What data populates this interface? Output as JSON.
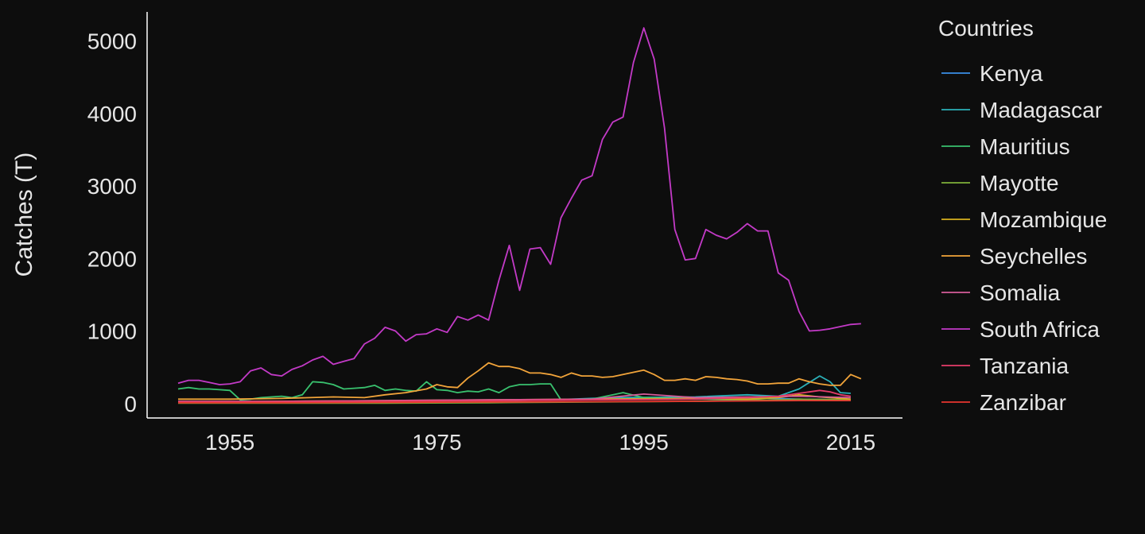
{
  "chart_data": {
    "type": "line",
    "title": "",
    "xlabel": "",
    "ylabel": "Catches (T)",
    "xlim": [
      1947,
      2020
    ],
    "ylim": [
      -200,
      5400
    ],
    "xticks": [
      1955,
      1975,
      1995,
      2015
    ],
    "yticks": [
      0,
      1000,
      2000,
      3000,
      4000,
      5000
    ],
    "grid": false,
    "legend": {
      "title": "Countries",
      "placement": "right"
    },
    "series": [
      {
        "name": "Kenya",
        "color": "#3a8ee8",
        "points": [
          [
            1950,
            20
          ],
          [
            1960,
            25
          ],
          [
            1970,
            30
          ],
          [
            1980,
            40
          ],
          [
            1990,
            60
          ],
          [
            2000,
            70
          ],
          [
            2005,
            80
          ],
          [
            2010,
            60
          ],
          [
            2015,
            50
          ]
        ]
      },
      {
        "name": "Madagascar",
        "color": "#2bb0b8",
        "points": [
          [
            1950,
            10
          ],
          [
            1960,
            15
          ],
          [
            1970,
            20
          ],
          [
            1980,
            30
          ],
          [
            1988,
            60
          ],
          [
            1992,
            80
          ],
          [
            2000,
            90
          ],
          [
            2005,
            120
          ],
          [
            2008,
            100
          ],
          [
            2010,
            200
          ],
          [
            2012,
            380
          ],
          [
            2013,
            300
          ],
          [
            2014,
            150
          ],
          [
            2015,
            140
          ]
        ]
      },
      {
        "name": "Mauritius",
        "color": "#39c16e",
        "points": [
          [
            1950,
            200
          ],
          [
            1951,
            220
          ],
          [
            1952,
            200
          ],
          [
            1953,
            200
          ],
          [
            1954,
            190
          ],
          [
            1955,
            180
          ],
          [
            1956,
            50
          ],
          [
            1957,
            60
          ],
          [
            1958,
            80
          ],
          [
            1959,
            90
          ],
          [
            1960,
            100
          ],
          [
            1961,
            80
          ],
          [
            1962,
            120
          ],
          [
            1963,
            300
          ],
          [
            1964,
            290
          ],
          [
            1965,
            260
          ],
          [
            1966,
            200
          ],
          [
            1967,
            210
          ],
          [
            1968,
            220
          ],
          [
            1969,
            250
          ],
          [
            1970,
            180
          ],
          [
            1971,
            200
          ],
          [
            1972,
            180
          ],
          [
            1973,
            170
          ],
          [
            1974,
            300
          ],
          [
            1975,
            190
          ],
          [
            1976,
            180
          ],
          [
            1977,
            150
          ],
          [
            1978,
            170
          ],
          [
            1979,
            160
          ],
          [
            1980,
            200
          ],
          [
            1981,
            150
          ],
          [
            1982,
            230
          ],
          [
            1983,
            260
          ],
          [
            1984,
            260
          ],
          [
            1985,
            270
          ],
          [
            1986,
            270
          ],
          [
            1987,
            50
          ],
          [
            1990,
            60
          ],
          [
            1993,
            150
          ],
          [
            1995,
            80
          ],
          [
            2000,
            60
          ],
          [
            2005,
            50
          ],
          [
            2010,
            40
          ],
          [
            2015,
            40
          ]
        ]
      },
      {
        "name": "Mayotte",
        "color": "#7fb03a",
        "points": [
          [
            1950,
            5
          ],
          [
            1960,
            5
          ],
          [
            1970,
            5
          ],
          [
            1980,
            10
          ],
          [
            1990,
            20
          ],
          [
            2000,
            30
          ],
          [
            2005,
            40
          ],
          [
            2010,
            60
          ],
          [
            2015,
            50
          ]
        ]
      },
      {
        "name": "Mozambique",
        "color": "#d8b11f",
        "points": [
          [
            1950,
            20
          ],
          [
            1960,
            30
          ],
          [
            1970,
            40
          ],
          [
            1980,
            50
          ],
          [
            1990,
            60
          ],
          [
            2000,
            70
          ],
          [
            2005,
            60
          ],
          [
            2008,
            80
          ],
          [
            2010,
            120
          ],
          [
            2012,
            90
          ],
          [
            2015,
            60
          ]
        ]
      },
      {
        "name": "Seychelles",
        "color": "#f2a43a",
        "points": [
          [
            1950,
            60
          ],
          [
            1955,
            60
          ],
          [
            1960,
            70
          ],
          [
            1965,
            90
          ],
          [
            1968,
            80
          ],
          [
            1970,
            120
          ],
          [
            1972,
            150
          ],
          [
            1974,
            200
          ],
          [
            1975,
            260
          ],
          [
            1976,
            230
          ],
          [
            1977,
            220
          ],
          [
            1978,
            350
          ],
          [
            1979,
            450
          ],
          [
            1980,
            560
          ],
          [
            1981,
            510
          ],
          [
            1982,
            510
          ],
          [
            1983,
            480
          ],
          [
            1984,
            420
          ],
          [
            1985,
            420
          ],
          [
            1986,
            400
          ],
          [
            1987,
            360
          ],
          [
            1988,
            420
          ],
          [
            1989,
            380
          ],
          [
            1990,
            380
          ],
          [
            1991,
            360
          ],
          [
            1992,
            370
          ],
          [
            1993,
            400
          ],
          [
            1994,
            430
          ],
          [
            1995,
            460
          ],
          [
            1996,
            400
          ],
          [
            1997,
            320
          ],
          [
            1998,
            320
          ],
          [
            1999,
            340
          ],
          [
            2000,
            320
          ],
          [
            2001,
            370
          ],
          [
            2002,
            360
          ],
          [
            2003,
            340
          ],
          [
            2004,
            330
          ],
          [
            2005,
            310
          ],
          [
            2006,
            270
          ],
          [
            2007,
            270
          ],
          [
            2008,
            280
          ],
          [
            2009,
            280
          ],
          [
            2010,
            340
          ],
          [
            2011,
            300
          ],
          [
            2012,
            270
          ],
          [
            2013,
            250
          ],
          [
            2014,
            250
          ],
          [
            2015,
            400
          ],
          [
            2016,
            340
          ]
        ]
      },
      {
        "name": "Somalia",
        "color": "#d65c9a",
        "points": [
          [
            1950,
            30
          ],
          [
            1960,
            30
          ],
          [
            1970,
            40
          ],
          [
            1980,
            50
          ],
          [
            1990,
            60
          ],
          [
            1995,
            130
          ],
          [
            2000,
            80
          ],
          [
            2005,
            90
          ],
          [
            2010,
            100
          ],
          [
            2015,
            80
          ]
        ]
      },
      {
        "name": "South Africa",
        "color": "#c33ac7",
        "points": [
          [
            1950,
            280
          ],
          [
            1951,
            320
          ],
          [
            1952,
            320
          ],
          [
            1953,
            290
          ],
          [
            1954,
            260
          ],
          [
            1955,
            270
          ],
          [
            1956,
            300
          ],
          [
            1957,
            450
          ],
          [
            1958,
            490
          ],
          [
            1959,
            400
          ],
          [
            1960,
            380
          ],
          [
            1961,
            470
          ],
          [
            1962,
            520
          ],
          [
            1963,
            600
          ],
          [
            1964,
            650
          ],
          [
            1965,
            540
          ],
          [
            1966,
            580
          ],
          [
            1967,
            620
          ],
          [
            1968,
            820
          ],
          [
            1969,
            900
          ],
          [
            1970,
            1050
          ],
          [
            1971,
            1000
          ],
          [
            1972,
            860
          ],
          [
            1973,
            950
          ],
          [
            1974,
            960
          ],
          [
            1975,
            1030
          ],
          [
            1976,
            980
          ],
          [
            1977,
            1200
          ],
          [
            1978,
            1150
          ],
          [
            1979,
            1220
          ],
          [
            1980,
            1150
          ],
          [
            1981,
            1700
          ],
          [
            1982,
            2180
          ],
          [
            1983,
            1560
          ],
          [
            1984,
            2130
          ],
          [
            1985,
            2150
          ],
          [
            1986,
            1920
          ],
          [
            1987,
            2560
          ],
          [
            1988,
            2830
          ],
          [
            1989,
            3080
          ],
          [
            1990,
            3140
          ],
          [
            1991,
            3640
          ],
          [
            1992,
            3880
          ],
          [
            1993,
            3950
          ],
          [
            1994,
            4700
          ],
          [
            1995,
            5180
          ],
          [
            1996,
            4750
          ],
          [
            1997,
            3800
          ],
          [
            1998,
            2400
          ],
          [
            1999,
            1980
          ],
          [
            2000,
            2000
          ],
          [
            2001,
            2400
          ],
          [
            2002,
            2320
          ],
          [
            2003,
            2270
          ],
          [
            2004,
            2360
          ],
          [
            2005,
            2480
          ],
          [
            2006,
            2380
          ],
          [
            2007,
            2380
          ],
          [
            2008,
            1800
          ],
          [
            2009,
            1700
          ],
          [
            2010,
            1270
          ],
          [
            2011,
            1000
          ],
          [
            2012,
            1010
          ],
          [
            2013,
            1030
          ],
          [
            2014,
            1060
          ],
          [
            2015,
            1090
          ],
          [
            2016,
            1100
          ]
        ]
      },
      {
        "name": "Tanzania",
        "color": "#e63c6a",
        "points": [
          [
            1950,
            20
          ],
          [
            1960,
            25
          ],
          [
            1970,
            30
          ],
          [
            1980,
            40
          ],
          [
            1990,
            50
          ],
          [
            2000,
            60
          ],
          [
            2005,
            80
          ],
          [
            2008,
            100
          ],
          [
            2010,
            140
          ],
          [
            2012,
            180
          ],
          [
            2013,
            160
          ],
          [
            2014,
            120
          ],
          [
            2015,
            100
          ]
        ]
      },
      {
        "name": "Zanzibar",
        "color": "#e8362f",
        "points": [
          [
            1950,
            10
          ],
          [
            1960,
            10
          ],
          [
            1970,
            15
          ],
          [
            1980,
            20
          ],
          [
            1990,
            25
          ],
          [
            2000,
            30
          ],
          [
            2010,
            40
          ],
          [
            2015,
            40
          ]
        ]
      }
    ]
  }
}
